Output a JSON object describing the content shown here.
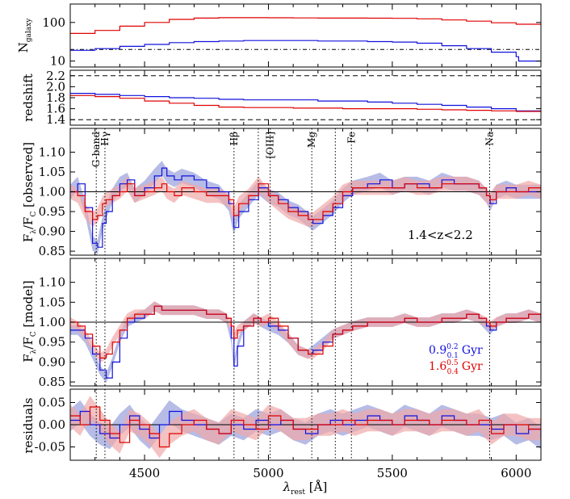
{
  "colors": {
    "blue": "#1010dd",
    "red": "#e00000",
    "blue_band": "#9ea6dd",
    "red_band": "#f0a8a8",
    "axis": "#000000"
  },
  "labels": {
    "n_galaxy_main": "N",
    "n_galaxy_sub": "galaxy",
    "redshift": "redshift",
    "f_obs_main": "F",
    "f_obs_sub1": "λ",
    "f_obs_mid": "/F",
    "f_obs_sub2": "C",
    "f_obs_tail": " [observed]",
    "f_mod_tail": " [model]",
    "residuals": "residuals",
    "xlabel_main": "λ",
    "xlabel_sub": "rest",
    "xlabel_tail": " [Å]",
    "zrange": "1.4<z<2.2",
    "age_blue_value": "0.9",
    "age_blue_sup": "0.2",
    "age_blue_sub": "0.1",
    "age_red_value": "1.6",
    "age_red_sup": "0.5",
    "age_red_sub": "0.4",
    "age_unit": "Gyr"
  },
  "chart_data": [
    {
      "panel": "n_galaxy",
      "type": "line",
      "yscale": "log",
      "xlim": [
        4200,
        6100
      ],
      "ylim": [
        7,
        300
      ],
      "yticks": [
        10,
        100
      ],
      "ytick_labels": [
        "10",
        "100"
      ],
      "hline": {
        "y": 20,
        "style": "dash-dot"
      },
      "series": [
        {
          "name": "red",
          "x": [
            4200,
            4300,
            4400,
            4500,
            4600,
            4700,
            4800,
            4900,
            5000,
            5100,
            5200,
            5300,
            5400,
            5500,
            5600,
            5700,
            5800,
            5900,
            6000,
            6100
          ],
          "y": [
            52,
            62,
            80,
            100,
            120,
            130,
            133,
            133,
            132,
            131,
            130,
            130,
            129,
            128,
            124,
            116,
            108,
            98,
            90,
            88
          ]
        },
        {
          "name": "blue",
          "x": [
            4200,
            4300,
            4400,
            4500,
            4600,
            4700,
            4800,
            4900,
            5000,
            5100,
            5200,
            5300,
            5400,
            5500,
            5600,
            5700,
            5800,
            5900,
            6000,
            6010,
            6100
          ],
          "y": [
            19,
            21,
            24,
            27,
            30,
            32,
            33,
            34,
            34,
            34,
            33,
            33,
            32,
            31,
            29,
            25,
            21,
            17,
            13,
            10,
            10
          ]
        }
      ]
    },
    {
      "panel": "redshift",
      "type": "line",
      "xlim": [
        4200,
        6100
      ],
      "ylim": [
        1.3,
        2.3
      ],
      "yticks": [
        1.4,
        1.6,
        1.8,
        2.0,
        2.2
      ],
      "ytick_labels": [
        "1.4",
        "1.6",
        "1.8",
        "2.0",
        "2.2"
      ],
      "hlines": [
        1.4,
        2.2
      ],
      "series": [
        {
          "name": "blue",
          "x": [
            4200,
            4300,
            4400,
            4500,
            4600,
            4700,
            4800,
            4900,
            5000,
            5100,
            5200,
            5300,
            5400,
            5500,
            5600,
            5700,
            5800,
            5900,
            6000,
            6100
          ],
          "y": [
            1.88,
            1.86,
            1.84,
            1.82,
            1.8,
            1.79,
            1.77,
            1.76,
            1.76,
            1.76,
            1.74,
            1.74,
            1.72,
            1.7,
            1.68,
            1.66,
            1.63,
            1.6,
            1.56,
            1.54
          ]
        },
        {
          "name": "red",
          "x": [
            4200,
            4300,
            4400,
            4500,
            4600,
            4700,
            4800,
            4900,
            5000,
            5100,
            5200,
            5300,
            5400,
            5500,
            5600,
            5700,
            5800,
            5900,
            6000,
            6100
          ],
          "y": [
            1.84,
            1.82,
            1.79,
            1.74,
            1.7,
            1.66,
            1.63,
            1.62,
            1.62,
            1.61,
            1.61,
            1.6,
            1.6,
            1.6,
            1.59,
            1.58,
            1.57,
            1.56,
            1.55,
            1.55
          ]
        }
      ]
    },
    {
      "panel": "observed",
      "type": "line",
      "xlim": [
        4200,
        6100
      ],
      "ylim": [
        0.84,
        1.16
      ],
      "yticks": [
        0.85,
        0.9,
        0.95,
        1.0,
        1.05,
        1.1
      ],
      "ytick_labels": [
        "0.85",
        "0.90",
        "0.95",
        "1.00",
        "1.05",
        "1.10"
      ],
      "hline": 1.0,
      "line_markers": [
        {
          "x": 4305,
          "label": "G-band"
        },
        {
          "x": 4340,
          "label": "Hγ"
        },
        {
          "x": 4861,
          "label": "Hβ"
        },
        {
          "x": 4959,
          "label": ""
        },
        {
          "x": 5007,
          "label": "[OIII]"
        },
        {
          "x": 5175,
          "label": "Mg"
        },
        {
          "x": 5270,
          "label": ""
        },
        {
          "x": 5335,
          "label": "Fe"
        },
        {
          "x": 5893,
          "label": "Na"
        }
      ],
      "series": [
        {
          "name": "blue",
          "x": [
            4200,
            4230,
            4260,
            4290,
            4310,
            4330,
            4345,
            4370,
            4400,
            4430,
            4460,
            4500,
            4540,
            4570,
            4590,
            4620,
            4650,
            4700,
            4750,
            4800,
            4840,
            4860,
            4880,
            4920,
            4960,
            5000,
            5040,
            5080,
            5120,
            5160,
            5180,
            5220,
            5260,
            5300,
            5340,
            5400,
            5450,
            5500,
            5550,
            5600,
            5650,
            5700,
            5750,
            5800,
            5850,
            5880,
            5895,
            5920,
            5960,
            6000,
            6050,
            6100
          ],
          "y": [
            1.0,
            1.02,
            0.96,
            0.87,
            0.86,
            0.92,
            0.95,
            0.99,
            1.02,
            1.03,
            0.99,
            1.01,
            1.04,
            1.06,
            1.04,
            1.03,
            1.04,
            1.03,
            1.01,
            1.0,
            0.97,
            0.91,
            0.95,
            0.98,
            1.01,
            0.99,
            0.98,
            0.96,
            0.95,
            0.93,
            0.92,
            0.94,
            0.96,
            0.99,
            1.01,
            1.02,
            1.03,
            1.01,
            1.02,
            1.02,
            1.01,
            1.03,
            1.02,
            1.02,
            1.01,
            0.99,
            0.97,
            1.0,
            1.01,
            1.0,
            1.0,
            1.0
          ]
        },
        {
          "name": "red",
          "x": [
            4200,
            4230,
            4260,
            4290,
            4310,
            4330,
            4345,
            4370,
            4400,
            4430,
            4460,
            4500,
            4540,
            4570,
            4590,
            4620,
            4650,
            4700,
            4750,
            4800,
            4840,
            4860,
            4880,
            4920,
            4960,
            5000,
            5040,
            5080,
            5120,
            5160,
            5180,
            5220,
            5260,
            5300,
            5340,
            5400,
            5450,
            5500,
            5550,
            5600,
            5650,
            5700,
            5750,
            5800,
            5850,
            5880,
            5895,
            5920,
            5960,
            6000,
            6050,
            6100
          ],
          "y": [
            1.0,
            0.99,
            0.95,
            0.93,
            0.94,
            0.97,
            0.98,
            0.99,
            1.0,
            1.02,
            0.99,
            1.0,
            1.01,
            1.02,
            1.0,
            0.99,
            1.01,
            1.0,
            0.99,
            0.99,
            0.98,
            0.94,
            0.97,
            0.99,
            1.02,
            0.99,
            0.97,
            0.95,
            0.94,
            0.93,
            0.93,
            0.95,
            0.97,
            1.0,
            1.01,
            1.01,
            1.01,
            1.01,
            1.02,
            1.01,
            1.01,
            1.02,
            1.02,
            1.02,
            1.01,
            0.99,
            0.98,
            1.0,
            1.0,
            1.0,
            1.01,
            1.0
          ]
        }
      ],
      "uncertainty": 0.018
    },
    {
      "panel": "model",
      "type": "line",
      "xlim": [
        4200,
        6100
      ],
      "ylim": [
        0.84,
        1.16
      ],
      "yticks": [
        0.85,
        0.9,
        0.95,
        1.0,
        1.05,
        1.1
      ],
      "ytick_labels": [
        "0.85",
        "0.90",
        "0.95",
        "1.00",
        "1.05",
        "1.10"
      ],
      "hline": 1.0,
      "series": [
        {
          "name": "blue",
          "x": [
            4200,
            4230,
            4260,
            4290,
            4320,
            4345,
            4370,
            4400,
            4430,
            4460,
            4500,
            4540,
            4570,
            4600,
            4650,
            4700,
            4750,
            4800,
            4830,
            4850,
            4861,
            4875,
            4900,
            4940,
            4970,
            5000,
            5040,
            5080,
            5120,
            5160,
            5180,
            5220,
            5260,
            5300,
            5340,
            5400,
            5450,
            5500,
            5550,
            5600,
            5650,
            5700,
            5750,
            5800,
            5850,
            5880,
            5895,
            5920,
            5960,
            6000,
            6050,
            6100
          ],
          "y": [
            0.98,
            0.98,
            0.96,
            0.92,
            0.88,
            0.86,
            0.9,
            0.96,
            1.0,
            1.01,
            1.02,
            1.04,
            1.03,
            1.03,
            1.03,
            1.03,
            1.02,
            1.02,
            1.01,
            0.96,
            0.89,
            0.94,
            0.99,
            1.01,
            1.0,
            0.99,
            0.98,
            0.96,
            0.93,
            0.92,
            0.93,
            0.95,
            0.97,
            0.98,
            0.99,
            1.0,
            1.0,
            1.0,
            1.01,
            1.0,
            1.0,
            1.01,
            1.01,
            1.02,
            1.01,
            0.99,
            0.98,
            1.0,
            1.01,
            1.01,
            1.02,
            1.01
          ]
        },
        {
          "name": "red",
          "x": [
            4200,
            4230,
            4260,
            4290,
            4320,
            4345,
            4370,
            4400,
            4430,
            4460,
            4500,
            4540,
            4570,
            4600,
            4650,
            4700,
            4750,
            4800,
            4830,
            4850,
            4861,
            4875,
            4900,
            4940,
            4970,
            5000,
            5040,
            5080,
            5120,
            5160,
            5180,
            5220,
            5260,
            5300,
            5340,
            5400,
            5450,
            5500,
            5550,
            5600,
            5650,
            5700,
            5750,
            5800,
            5850,
            5880,
            5895,
            5920,
            5960,
            6000,
            6050,
            6100
          ],
          "y": [
            1.0,
            0.99,
            0.97,
            0.94,
            0.91,
            0.92,
            0.95,
            0.98,
            1.01,
            1.02,
            1.02,
            1.04,
            1.03,
            1.03,
            1.03,
            1.03,
            1.02,
            1.02,
            1.01,
            0.99,
            0.96,
            0.98,
            0.99,
            1.01,
            1.0,
            1.01,
            0.99,
            0.96,
            0.93,
            0.92,
            0.92,
            0.94,
            0.97,
            0.98,
            0.99,
            1.0,
            1.0,
            1.0,
            1.01,
            1.0,
            1.0,
            1.01,
            1.01,
            1.02,
            1.01,
            1.0,
            0.99,
            1.0,
            1.01,
            1.01,
            1.02,
            1.01
          ]
        }
      ],
      "uncertainty": 0.012
    },
    {
      "panel": "residuals",
      "type": "line",
      "xlim": [
        4200,
        6100
      ],
      "ylim": [
        -0.08,
        0.08
      ],
      "yticks": [
        -0.05,
        0.0,
        0.05
      ],
      "ytick_labels": [
        "-0.05",
        "0.00",
        "0.05"
      ],
      "xticks": [
        4500,
        5000,
        5500,
        6000
      ],
      "xtick_labels": [
        "4500",
        "5000",
        "5500",
        "6000"
      ],
      "hline": 0.0,
      "series": [
        {
          "name": "blue",
          "x": [
            4200,
            4240,
            4280,
            4320,
            4360,
            4400,
            4440,
            4480,
            4520,
            4560,
            4600,
            4650,
            4700,
            4750,
            4800,
            4850,
            4900,
            4950,
            5000,
            5050,
            5100,
            5150,
            5200,
            5250,
            5300,
            5350,
            5400,
            5450,
            5500,
            5550,
            5600,
            5650,
            5700,
            5750,
            5800,
            5850,
            5900,
            5950,
            6000,
            6050,
            6100
          ],
          "y": [
            0.01,
            0.03,
            0.0,
            -0.02,
            -0.03,
            0.0,
            0.02,
            -0.01,
            -0.03,
            0.0,
            0.03,
            0.01,
            0.0,
            -0.01,
            -0.02,
            0.0,
            -0.01,
            0.01,
            0.0,
            0.01,
            -0.01,
            -0.02,
            0.0,
            0.01,
            0.0,
            0.01,
            0.02,
            0.01,
            0.0,
            0.02,
            0.01,
            0.0,
            0.02,
            0.01,
            0.0,
            0.0,
            -0.01,
            0.0,
            -0.02,
            -0.01,
            -0.03
          ]
        },
        {
          "name": "red",
          "x": [
            4200,
            4240,
            4280,
            4320,
            4360,
            4400,
            4440,
            4480,
            4520,
            4560,
            4600,
            4650,
            4700,
            4750,
            4800,
            4850,
            4900,
            4950,
            5000,
            5050,
            5100,
            5150,
            5200,
            5250,
            5300,
            5350,
            5400,
            5450,
            5500,
            5550,
            5600,
            5650,
            5700,
            5750,
            5800,
            5850,
            5900,
            5950,
            6000,
            6050,
            6100
          ],
          "y": [
            0.02,
            0.0,
            0.04,
            0.01,
            -0.02,
            -0.04,
            0.01,
            0.0,
            -0.02,
            -0.05,
            -0.02,
            0.0,
            0.01,
            -0.01,
            -0.02,
            0.01,
            0.0,
            -0.01,
            0.02,
            0.01,
            -0.01,
            -0.01,
            0.0,
            0.0,
            0.01,
            0.0,
            0.01,
            0.01,
            0.0,
            0.01,
            0.01,
            0.0,
            0.01,
            0.01,
            0.0,
            0.01,
            -0.02,
            0.0,
            0.0,
            -0.01,
            -0.01
          ]
        }
      ],
      "uncertainty": 0.025
    }
  ]
}
